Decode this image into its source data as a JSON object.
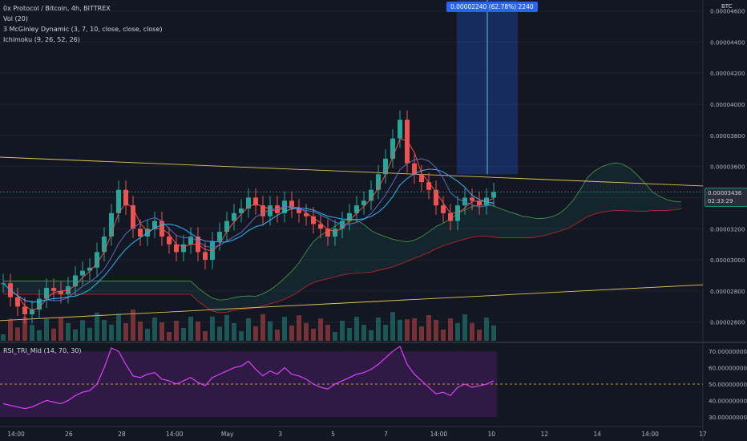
{
  "legend": {
    "title": "0x Protocol / Bitcoin, 4h, BITTREX",
    "vol": "Vol (20)",
    "mcginley": "3 McGinley Dynamic (3, 7, 10, close, close, close)",
    "ichimoku": "Ichimoku (9, 26, 52, 26)",
    "rsi": "RSI_TRI_Mid (14, 70, 30)"
  },
  "axis_unit": "BTC",
  "price_tag": {
    "value": "0.00003436",
    "countdown": "02:33:29"
  },
  "measure_tag": "0.00002240 (62.78%) 2240",
  "colors": {
    "up": "#26a69a",
    "down": "#ef5350",
    "bg": "#131722",
    "rsi": "#e040fb",
    "trend": "#e6c35a"
  },
  "chart_data": {
    "type": "candlestick",
    "price_axis": {
      "ticks": [
        "0.00004600",
        "0.00004400",
        "0.00004200",
        "0.00004000",
        "0.00003800",
        "0.00003600",
        "0.00003400",
        "0.00003200",
        "0.00003000",
        "0.00002800",
        "0.00002600"
      ],
      "ylim": [
        2.48e-05,
        4.67e-05
      ]
    },
    "rsi_axis": {
      "ticks": [
        "70.00000000",
        "60.00000000",
        "50.00000000",
        "40.00000000",
        "30.00000000"
      ],
      "ylim": [
        26,
        74
      ]
    },
    "time_axis": [
      "14:00",
      "26",
      "28",
      "14:00",
      "May",
      "3",
      "5",
      "7",
      "14:00",
      "10",
      "12",
      "14",
      "14:00",
      "17"
    ],
    "last_price": 3.436e-05,
    "close": [
      2.85e-05,
      2.76e-05,
      2.7e-05,
      2.65e-05,
      2.68e-05,
      2.75e-05,
      2.82e-05,
      2.8e-05,
      2.78e-05,
      2.83e-05,
      2.9e-05,
      2.93e-05,
      2.95e-05,
      3.05e-05,
      3.15e-05,
      3.3e-05,
      3.45e-05,
      3.35e-05,
      3.2e-05,
      3.15e-05,
      3.2e-05,
      3.25e-05,
      3.15e-05,
      3.1e-05,
      3.05e-05,
      3.1e-05,
      3.15e-05,
      3.05e-05,
      3e-05,
      3.12e-05,
      3.18e-05,
      3.25e-05,
      3.3e-05,
      3.33e-05,
      3.4e-05,
      3.35e-05,
      3.28e-05,
      3.35e-05,
      3.3e-05,
      3.38e-05,
      3.33e-05,
      3.3e-05,
      3.28e-05,
      3.23e-05,
      3.2e-05,
      3.15e-05,
      3.2e-05,
      3.25e-05,
      3.3e-05,
      3.35e-05,
      3.38e-05,
      3.45e-05,
      3.55e-05,
      3.65e-05,
      3.78e-05,
      3.9e-05,
      3.62e-05,
      3.55e-05,
      3.5e-05,
      3.45e-05,
      3.35e-05,
      3.3e-05,
      3.25e-05,
      3.35e-05,
      3.4e-05,
      3.38e-05,
      3.35e-05,
      3.4e-05,
      3.436e-05
    ],
    "rsi": [
      38,
      37,
      36,
      35,
      36,
      38,
      40,
      39,
      38,
      40,
      43,
      45,
      46,
      50,
      60,
      72,
      70,
      62,
      55,
      54,
      56,
      57,
      53,
      52,
      50,
      52,
      54,
      51,
      49,
      54,
      56,
      58,
      60,
      61,
      64,
      59,
      55,
      58,
      56,
      60,
      56,
      55,
      53,
      50,
      48,
      47,
      50,
      52,
      54,
      56,
      57,
      59,
      62,
      66,
      70,
      73,
      62,
      56,
      52,
      48,
      44,
      45,
      43,
      48,
      50,
      48,
      49,
      50,
      52
    ]
  }
}
